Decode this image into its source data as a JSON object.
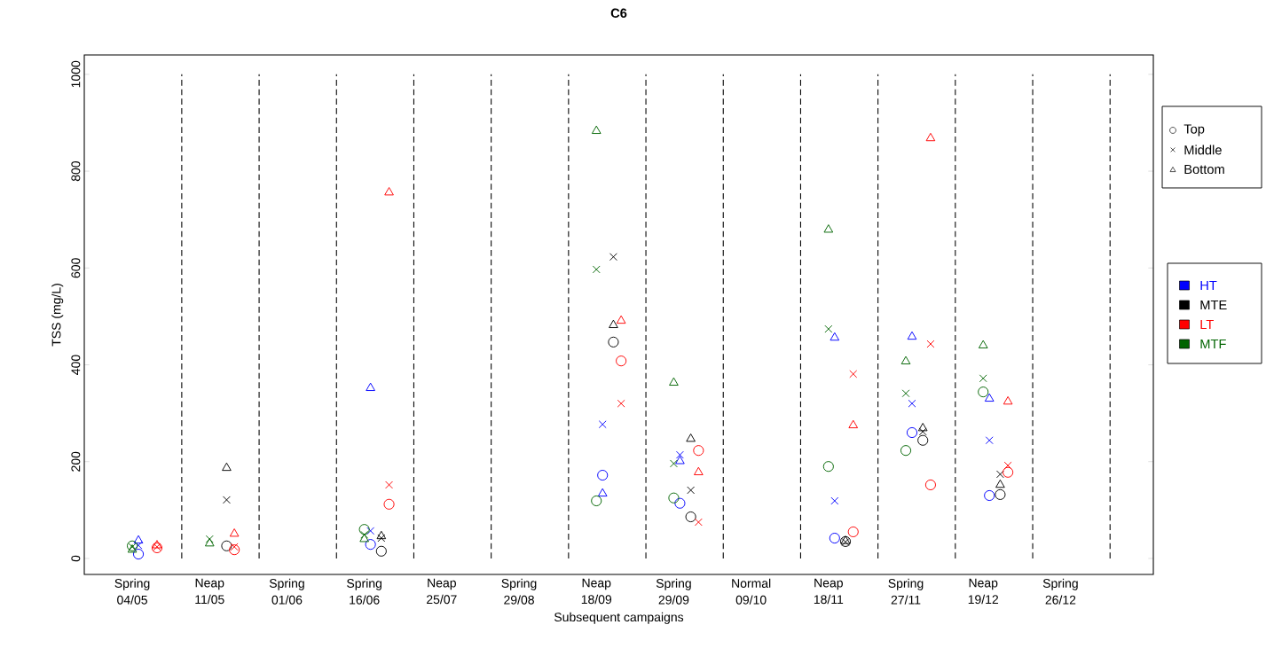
{
  "chart_data": {
    "type": "scatter",
    "title": "C6",
    "xlabel": "Subsequent campaigns",
    "ylabel": "TSS (mg/L)",
    "categories": [
      "Spring 04/05",
      "Neap 11/05",
      "Spring 01/06",
      "Spring 16/06",
      "Neap 25/07",
      "Spring 29/08",
      "Neap 18/09",
      "Spring 29/09",
      "Normal 09/10",
      "Neap 18/11",
      "Spring 27/11",
      "Neap 19/12",
      "Spring 26/12"
    ],
    "ylim": [
      -33,
      1040
    ],
    "yticks": [
      0,
      200,
      400,
      600,
      800,
      1000
    ],
    "grid": "x",
    "annotations": [
      "Top",
      "Middle",
      "Bottom",
      "HT",
      "MTE",
      "LT",
      "MTF"
    ],
    "series": [
      {
        "color": "#0000ff",
        "marker": "circle",
        "values": [
          9,
          null,
          null,
          29,
          null,
          null,
          172,
          114,
          null,
          42,
          260,
          130,
          null
        ]
      },
      {
        "color": "#0000ff",
        "marker": "cross",
        "values": [
          27,
          null,
          null,
          57,
          null,
          null,
          277,
          214,
          null,
          119,
          320,
          244,
          null
        ]
      },
      {
        "color": "#0000ff",
        "marker": "triangle",
        "values": [
          37,
          null,
          null,
          352,
          null,
          null,
          134,
          201,
          null,
          456,
          458,
          330,
          null
        ]
      },
      {
        "color": "#000000",
        "marker": "circle",
        "values": [
          null,
          26,
          null,
          15,
          null,
          null,
          447,
          86,
          null,
          35,
          244,
          132,
          null
        ]
      },
      {
        "color": "#000000",
        "marker": "cross",
        "values": [
          null,
          121,
          null,
          42,
          null,
          null,
          623,
          141,
          null,
          34,
          262,
          174,
          null
        ]
      },
      {
        "color": "#000000",
        "marker": "triangle",
        "values": [
          null,
          187,
          null,
          46,
          null,
          null,
          482,
          247,
          null,
          36,
          269,
          152,
          null
        ]
      },
      {
        "color": "#ff0000",
        "marker": "circle",
        "values": [
          22,
          18,
          null,
          112,
          null,
          null,
          408,
          223,
          null,
          55,
          152,
          178,
          null
        ]
      },
      {
        "color": "#ff0000",
        "marker": "cross",
        "values": [
          24,
          24,
          null,
          152,
          null,
          null,
          320,
          75,
          null,
          381,
          443,
          192,
          null
        ]
      },
      {
        "color": "#ff0000",
        "marker": "triangle",
        "values": [
          27,
          51,
          null,
          756,
          null,
          null,
          491,
          178,
          null,
          275,
          868,
          324,
          null
        ]
      },
      {
        "color": "#006400",
        "marker": "circle",
        "values": [
          26,
          null,
          null,
          60,
          null,
          null,
          119,
          125,
          null,
          190,
          223,
          344,
          null
        ]
      },
      {
        "color": "#006400",
        "marker": "cross",
        "values": [
          24,
          40,
          null,
          49,
          null,
          null,
          597,
          196,
          null,
          474,
          341,
          372,
          null
        ]
      },
      {
        "color": "#006400",
        "marker": "triangle",
        "values": [
          18,
          31,
          null,
          40,
          null,
          null,
          883,
          363,
          null,
          679,
          407,
          440,
          null
        ]
      }
    ]
  }
}
